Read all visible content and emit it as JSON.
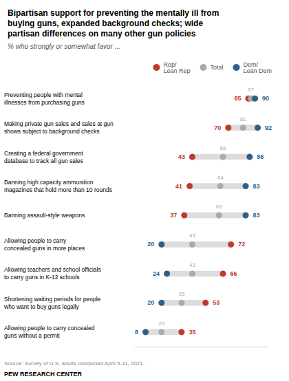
{
  "chart_data": {
    "type": "dot",
    "title": "Bipartisan support for preventing the mentally ill from\nbuying guns, expanded background checks; wide\npartisan differences on many other gun policies",
    "subtitle": "% who strongly or somewhat favor ...",
    "annotations": [
      "Source: Survey of U.S. adults conducted April 5-11, 2021.",
      "PEW RESEARCH CENTER"
    ],
    "categories": [
      "Preventing people with mental\nillnesses from purchasing guns",
      "Making private gun sales and sales at gun\nshows subject to background checks",
      "Creating a federal government\ndatabase to track all gun sales",
      "Banning high capacity ammunition\nmagazines that hold more than 10 rounds",
      "Banning assault-style weapons",
      "Allowing people to carry\nconcealed guns in more places",
      "Allowing teachers and school officials\nto carry guns in K-12 schools",
      "Shortening waiting periods for people\nwho want to buy guns legally",
      "Allowing people to carry concealed\nguns without a permit"
    ],
    "series": [
      {
        "name": "Rep/\nLean Rep",
        "color": "#C0392B",
        "values": [
          85,
          70,
          43,
          41,
          37,
          72,
          66,
          53,
          35
        ]
      },
      {
        "name": "Total",
        "color": "#AAAAAA",
        "values": [
          87,
          81,
          66,
          64,
          63,
          43,
          43,
          35,
          20
        ]
      },
      {
        "name": "Dem/\nLean Dem",
        "color": "#2E5F8A",
        "values": [
          90,
          92,
          86,
          83,
          83,
          20,
          24,
          20,
          8
        ]
      }
    ],
    "xlim": [
      0,
      100
    ],
    "orientation": "horizontal",
    "data_labels": true,
    "tick_labels": "y",
    "grid": false,
    "legend": "top"
  }
}
